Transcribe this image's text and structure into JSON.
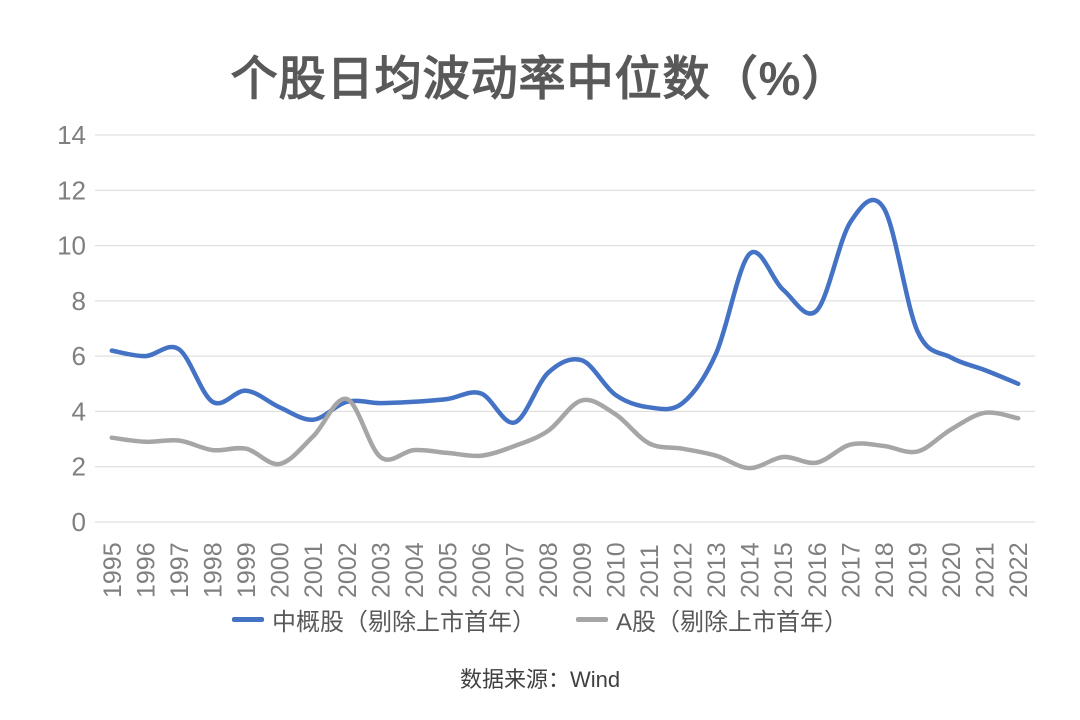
{
  "title": "个股日均波动率中位数（%）",
  "source_note": "数据来源：Wind",
  "colors": {
    "series1": "#4472C4",
    "series2": "#A6A6A6",
    "gridline": "#D9D9D9",
    "axis_text": "#7F7F7F",
    "title_text": "#595959",
    "legend_text": "#595959",
    "source_text": "#404040",
    "background": "#FFFFFF"
  },
  "chart_data": {
    "type": "line",
    "title": "个股日均波动率中位数（%）",
    "xlabel": "",
    "ylabel": "",
    "ylim": [
      0,
      14
    ],
    "ytick_step": 2,
    "grid": true,
    "smooth": true,
    "legend_position": "bottom",
    "x_label_rotation": -90,
    "categories": [
      "1995",
      "1996",
      "1997",
      "1998",
      "1999",
      "2000",
      "2001",
      "2002",
      "2003",
      "2004",
      "2005",
      "2006",
      "2007",
      "2008",
      "2009",
      "2010",
      "2011",
      "2012",
      "2013",
      "2014",
      "2015",
      "2016",
      "2017",
      "2018",
      "2019",
      "2020",
      "2021",
      "2022"
    ],
    "series": [
      {
        "name": "中概股（剔除上市首年）",
        "color": "#4472C4",
        "values": [
          6.2,
          6.0,
          6.25,
          4.35,
          4.75,
          4.15,
          3.7,
          4.35,
          4.3,
          4.35,
          4.45,
          4.65,
          3.6,
          5.4,
          5.85,
          4.6,
          4.15,
          4.3,
          6.1,
          9.7,
          8.4,
          7.65,
          10.85,
          11.35,
          6.9,
          5.95,
          5.5,
          5.0
        ]
      },
      {
        "name": "A股（剔除上市首年）",
        "color": "#A6A6A6",
        "values": [
          3.05,
          2.9,
          2.95,
          2.6,
          2.65,
          2.1,
          3.1,
          4.45,
          2.35,
          2.6,
          2.5,
          2.4,
          2.75,
          3.3,
          4.4,
          3.9,
          2.85,
          2.65,
          2.4,
          1.95,
          2.35,
          2.15,
          2.8,
          2.75,
          2.55,
          3.35,
          3.95,
          3.75
        ]
      }
    ]
  }
}
